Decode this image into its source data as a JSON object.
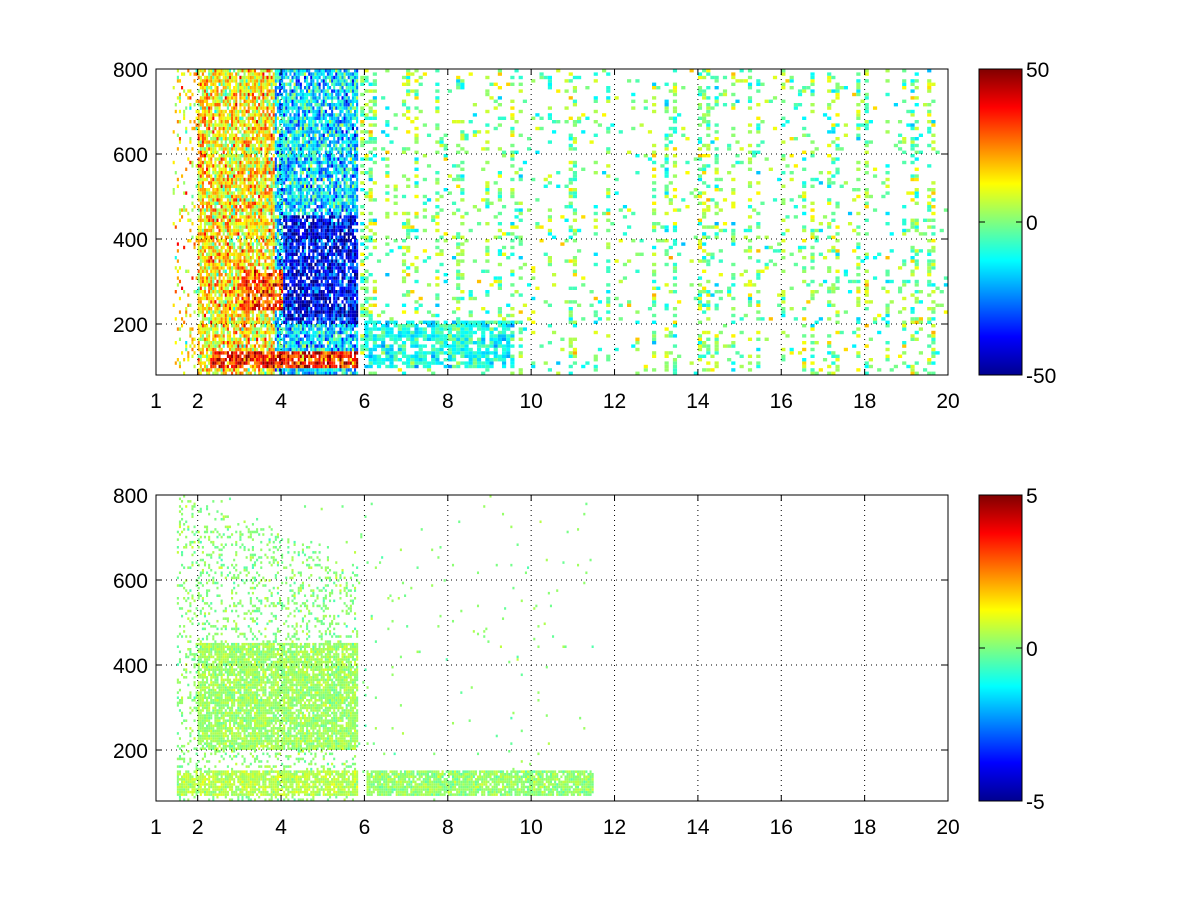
{
  "chart_data": [
    {
      "type": "heatmap",
      "title": "",
      "xlabel": "",
      "ylabel": "",
      "xlim": [
        1,
        20
      ],
      "ylim": [
        80,
        800
      ],
      "x_ticks": [
        "1",
        "2",
        "4",
        "6",
        "8",
        "10",
        "12",
        "14",
        "16",
        "18",
        "20"
      ],
      "x_tick_values": [
        1,
        2,
        4,
        6,
        8,
        10,
        12,
        14,
        16,
        18,
        20
      ],
      "y_ticks": [
        "200",
        "400",
        "600",
        "800"
      ],
      "y_tick_values": [
        200,
        400,
        600,
        800
      ],
      "grid": "dotted",
      "colormap": "jet",
      "colorbar": {
        "range": [
          -50,
          50
        ],
        "ticks": [
          "-50",
          "0",
          "50"
        ],
        "tick_values": [
          -50,
          0,
          50
        ]
      },
      "features": [
        {
          "x": [
            2.3,
            5.8
          ],
          "y": [
            90,
            130
          ],
          "value": 35
        },
        {
          "x": [
            3.0,
            4.0
          ],
          "y": [
            230,
            320
          ],
          "value": 30
        },
        {
          "x": [
            4.0,
            5.8
          ],
          "y": [
            200,
            450
          ],
          "value": -38
        },
        {
          "x": [
            6.0,
            9.5
          ],
          "y": [
            90,
            200
          ],
          "value": -10
        }
      ]
    },
    {
      "type": "heatmap",
      "title": "",
      "xlabel": "",
      "ylabel": "",
      "xlim": [
        1,
        20
      ],
      "ylim": [
        80,
        800
      ],
      "x_ticks": [
        "1",
        "2",
        "4",
        "6",
        "8",
        "10",
        "12",
        "14",
        "16",
        "18",
        "20"
      ],
      "x_tick_values": [
        1,
        2,
        4,
        6,
        8,
        10,
        12,
        14,
        16,
        18,
        20
      ],
      "y_ticks": [
        "200",
        "400",
        "600",
        "800"
      ],
      "y_tick_values": [
        200,
        400,
        600,
        800
      ],
      "grid": "dotted",
      "colormap": "jet",
      "colorbar": {
        "range": [
          -5,
          5
        ],
        "ticks": [
          "-5",
          "0",
          "5"
        ],
        "tick_values": [
          -5,
          0,
          5
        ]
      },
      "features": [
        {
          "x": [
            1.5,
            5.8
          ],
          "y": [
            90,
            150
          ],
          "value": 0.5
        },
        {
          "x": [
            2.0,
            5.8
          ],
          "y": [
            200,
            450
          ],
          "value": 0.3
        },
        {
          "x": [
            6.0,
            11.5
          ],
          "y": [
            90,
            150
          ],
          "value": 0.2
        }
      ]
    }
  ]
}
